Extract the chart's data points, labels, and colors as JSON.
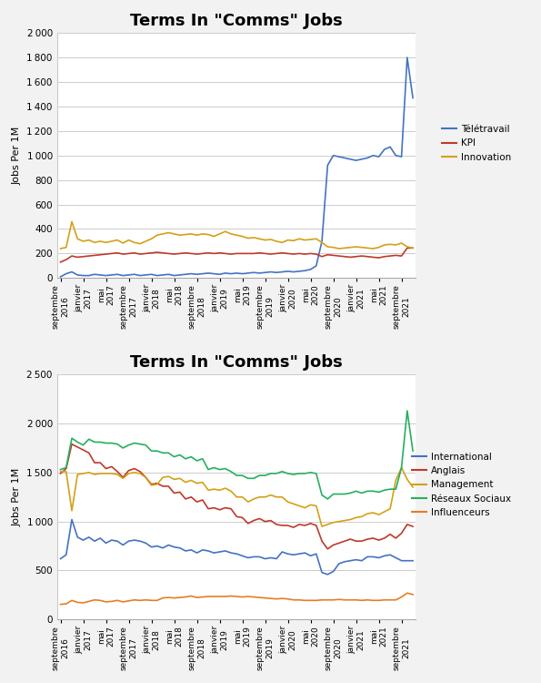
{
  "background_color": "#f2f2f2",
  "chart1": {
    "title": "Terms In \"Comms\" Jobs",
    "ylabel": "Jobs Per 1M",
    "ylim": [
      0,
      2000
    ],
    "yticks": [
      0,
      200,
      400,
      600,
      800,
      1000,
      1200,
      1400,
      1600,
      1800,
      2000
    ],
    "series": {
      "Télétravail": {
        "color": "#4472c4",
        "values": [
          10,
          35,
          50,
          25,
          20,
          20,
          30,
          25,
          20,
          25,
          30,
          20,
          25,
          30,
          20,
          25,
          30,
          20,
          25,
          30,
          20,
          25,
          30,
          35,
          30,
          35,
          40,
          35,
          30,
          40,
          35,
          40,
          35,
          40,
          45,
          40,
          45,
          50,
          45,
          50,
          55,
          50,
          55,
          60,
          70,
          100,
          300,
          920,
          1000,
          990,
          980,
          970,
          960,
          970,
          980,
          1000,
          990,
          1050,
          1070,
          1000,
          990,
          1800,
          1470
        ]
      },
      "KPI": {
        "color": "#c0392b",
        "values": [
          130,
          150,
          180,
          170,
          175,
          180,
          185,
          190,
          195,
          200,
          205,
          195,
          200,
          205,
          195,
          200,
          205,
          210,
          205,
          200,
          195,
          200,
          205,
          200,
          195,
          200,
          205,
          200,
          205,
          200,
          195,
          200,
          200,
          200,
          200,
          205,
          200,
          195,
          200,
          205,
          200,
          195,
          200,
          195,
          200,
          195,
          175,
          190,
          185,
          180,
          175,
          170,
          175,
          180,
          175,
          170,
          165,
          175,
          180,
          185,
          180,
          245,
          245
        ]
      },
      "Innovation": {
        "color": "#d4a017",
        "values": [
          240,
          250,
          460,
          320,
          300,
          310,
          290,
          300,
          290,
          300,
          310,
          285,
          310,
          290,
          280,
          300,
          320,
          350,
          360,
          370,
          360,
          350,
          355,
          360,
          350,
          360,
          355,
          340,
          360,
          380,
          360,
          350,
          340,
          325,
          330,
          320,
          310,
          315,
          300,
          290,
          310,
          305,
          320,
          310,
          315,
          320,
          290,
          255,
          250,
          240,
          245,
          250,
          255,
          250,
          245,
          240,
          250,
          270,
          275,
          270,
          285,
          255,
          245
        ]
      }
    }
  },
  "chart2": {
    "title": "Terms In \"Comms\" Jobs",
    "ylabel": "Jobs Per 1M",
    "ylim": [
      0,
      2500
    ],
    "yticks": [
      0,
      500,
      1000,
      1500,
      2000,
      2500
    ],
    "series": {
      "International": {
        "color": "#4472c4",
        "values": [
          620,
          660,
          1020,
          840,
          810,
          840,
          800,
          830,
          780,
          810,
          800,
          760,
          800,
          810,
          800,
          780,
          740,
          750,
          730,
          760,
          740,
          730,
          700,
          710,
          680,
          710,
          700,
          680,
          690,
          700,
          680,
          670,
          650,
          630,
          640,
          640,
          620,
          630,
          620,
          690,
          670,
          660,
          670,
          680,
          650,
          670,
          480,
          460,
          490,
          570,
          590,
          600,
          610,
          600,
          640,
          640,
          630,
          650,
          660,
          630,
          600,
          600,
          600
        ]
      },
      "Anglais": {
        "color": "#c0392b",
        "values": [
          1490,
          1540,
          1790,
          1760,
          1730,
          1700,
          1600,
          1600,
          1540,
          1560,
          1510,
          1450,
          1520,
          1540,
          1510,
          1450,
          1380,
          1390,
          1360,
          1360,
          1290,
          1300,
          1230,
          1250,
          1200,
          1220,
          1130,
          1140,
          1120,
          1140,
          1130,
          1050,
          1040,
          980,
          1010,
          1030,
          1000,
          1010,
          970,
          960,
          960,
          940,
          970,
          960,
          980,
          960,
          800,
          720,
          760,
          780,
          800,
          820,
          800,
          800,
          820,
          830,
          810,
          830,
          870,
          830,
          880,
          970,
          950
        ]
      },
      "Management": {
        "color": "#d4a017",
        "values": [
          1510,
          1510,
          1110,
          1480,
          1490,
          1500,
          1480,
          1490,
          1490,
          1490,
          1480,
          1440,
          1490,
          1500,
          1490,
          1450,
          1370,
          1380,
          1450,
          1460,
          1430,
          1440,
          1400,
          1420,
          1390,
          1400,
          1320,
          1330,
          1320,
          1340,
          1310,
          1250,
          1250,
          1200,
          1230,
          1250,
          1250,
          1270,
          1250,
          1250,
          1200,
          1180,
          1160,
          1140,
          1170,
          1160,
          950,
          970,
          990,
          1000,
          1010,
          1020,
          1040,
          1050,
          1080,
          1090,
          1070,
          1100,
          1130,
          1420,
          1550,
          1430,
          1350
        ]
      },
      "Réseaux Sociaux": {
        "color": "#27ae60",
        "values": [
          1530,
          1550,
          1850,
          1810,
          1780,
          1840,
          1810,
          1810,
          1800,
          1800,
          1790,
          1750,
          1780,
          1800,
          1790,
          1780,
          1720,
          1720,
          1700,
          1700,
          1660,
          1680,
          1640,
          1660,
          1620,
          1640,
          1530,
          1550,
          1530,
          1540,
          1510,
          1470,
          1470,
          1440,
          1440,
          1470,
          1470,
          1490,
          1490,
          1510,
          1490,
          1480,
          1490,
          1490,
          1500,
          1490,
          1270,
          1230,
          1280,
          1280,
          1280,
          1290,
          1310,
          1290,
          1310,
          1310,
          1300,
          1320,
          1330,
          1330,
          1550,
          2130,
          1720
        ]
      },
      "Influenceurs": {
        "color": "#e67e22",
        "values": [
          155,
          160,
          195,
          175,
          170,
          185,
          200,
          195,
          180,
          185,
          195,
          180,
          190,
          200,
          195,
          200,
          195,
          195,
          220,
          225,
          220,
          225,
          230,
          240,
          225,
          230,
          235,
          235,
          235,
          235,
          240,
          235,
          230,
          235,
          230,
          225,
          220,
          215,
          210,
          215,
          210,
          200,
          200,
          195,
          195,
          195,
          200,
          200,
          200,
          205,
          200,
          200,
          200,
          195,
          200,
          195,
          195,
          200,
          200,
          200,
          230,
          270,
          255
        ]
      }
    }
  },
  "x_tick_labels": [
    "septembre\n2016",
    "janvier\n2017",
    "mai\n2017",
    "septembre\n2017",
    "janvier\n2018",
    "mai\n2018",
    "septembre\n2018",
    "janvier\n2019",
    "mai\n2019",
    "septembre\n2019",
    "janvier\n2020",
    "mai\n2020",
    "septembre\n2020",
    "janvier\n2021",
    "mai\n2021",
    "septembre\n2021"
  ],
  "x_tick_indices": [
    0,
    4,
    8,
    12,
    16,
    20,
    24,
    28,
    32,
    36,
    40,
    44,
    48,
    52,
    56,
    60
  ]
}
